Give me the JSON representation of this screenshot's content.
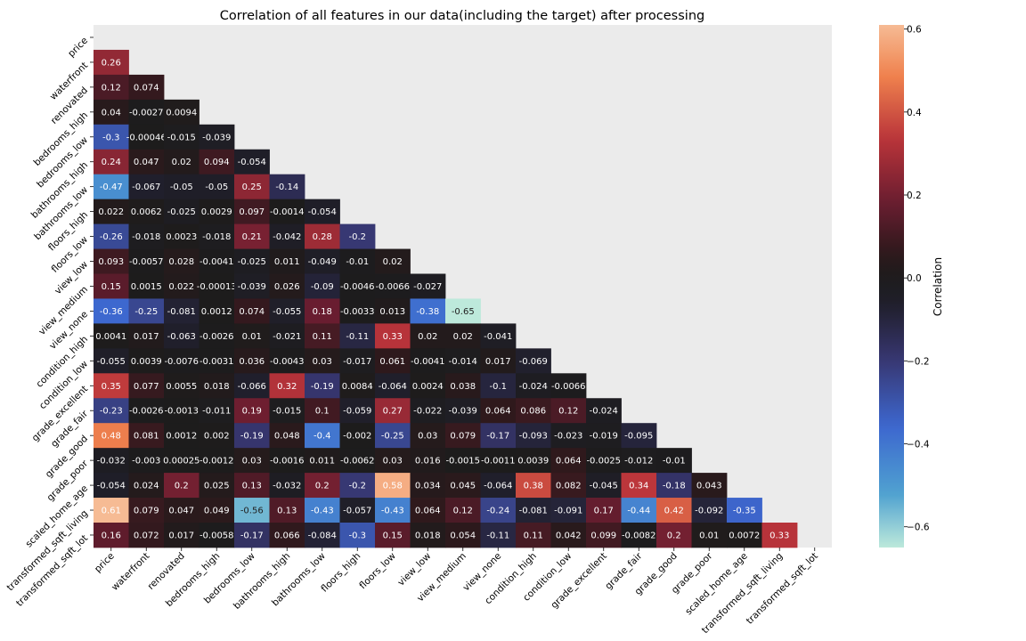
{
  "chart_data": {
    "type": "heatmap",
    "title": "Correlation of all features in our data(including the target) after processing",
    "features": [
      "price",
      "waterfront",
      "renovated",
      "bedrooms_high",
      "bedrooms_low",
      "bathrooms_high",
      "bathrooms_low",
      "floors_high",
      "floors_low",
      "view_low",
      "view_medium",
      "view_none",
      "condition_high",
      "condition_low",
      "grade_excellent",
      "grade_fair",
      "grade_good",
      "grade_poor",
      "scaled_home_age",
      "transformed_sqft_living",
      "transformed_sqft_lot"
    ],
    "mask": "upper-triangle-including-diagonal",
    "values": [
      [],
      [
        "0.26"
      ],
      [
        "0.12",
        "0.074"
      ],
      [
        "0.04",
        "-0.0027",
        "0.0094"
      ],
      [
        "-0.3",
        "-0.00046",
        "-0.015",
        "-0.039"
      ],
      [
        "0.24",
        "0.047",
        "0.02",
        "0.094",
        "-0.054"
      ],
      [
        "-0.47",
        "-0.067",
        "-0.05",
        "-0.05",
        "0.25",
        "-0.14"
      ],
      [
        "0.022",
        "0.0062",
        "-0.025",
        "0.0029",
        "0.097",
        "-0.0014",
        "-0.054"
      ],
      [
        "-0.26",
        "-0.018",
        "0.0023",
        "-0.018",
        "0.21",
        "-0.042",
        "0.28",
        "-0.2"
      ],
      [
        "0.093",
        "-0.0057",
        "0.028",
        "-0.0041",
        "-0.025",
        "0.011",
        "-0.049",
        "-0.01",
        "0.02"
      ],
      [
        "0.15",
        "0.0015",
        "0.022",
        "-0.00013",
        "-0.039",
        "0.026",
        "-0.09",
        "-0.0046",
        "-0.0066",
        "-0.027"
      ],
      [
        "-0.36",
        "-0.25",
        "-0.081",
        "0.0012",
        "0.074",
        "-0.055",
        "0.18",
        "-0.0033",
        "0.013",
        "-0.38",
        "-0.65"
      ],
      [
        "0.0041",
        "0.017",
        "-0.063",
        "-0.0026",
        "0.01",
        "-0.021",
        "0.11",
        "-0.11",
        "0.33",
        "0.02",
        "0.02",
        "-0.041"
      ],
      [
        "-0.055",
        "0.0039",
        "-0.0076",
        "-0.0031",
        "0.036",
        "-0.0043",
        "0.03",
        "-0.017",
        "0.061",
        "-0.0041",
        "-0.014",
        "0.017",
        "-0.069"
      ],
      [
        "0.35",
        "0.077",
        "0.0055",
        "0.018",
        "-0.066",
        "0.32",
        "-0.19",
        "0.0084",
        "-0.064",
        "0.0024",
        "0.038",
        "-0.1",
        "-0.024",
        "-0.0066"
      ],
      [
        "-0.23",
        "-0.0026",
        "-0.0013",
        "-0.011",
        "0.19",
        "-0.015",
        "0.1",
        "-0.059",
        "0.27",
        "-0.022",
        "-0.039",
        "0.064",
        "0.086",
        "0.12",
        "-0.024"
      ],
      [
        "0.48",
        "0.081",
        "0.0012",
        "0.002",
        "-0.19",
        "0.048",
        "-0.4",
        "-0.002",
        "-0.25",
        "0.03",
        "0.079",
        "-0.17",
        "-0.093",
        "-0.023",
        "-0.019",
        "-0.095"
      ],
      [
        "-0.032",
        "-0.003",
        "0.00025",
        "-0.0012",
        "0.03",
        "-0.0016",
        "0.011",
        "-0.0062",
        "0.03",
        "0.016",
        "-0.0015",
        "-0.0011",
        "0.0039",
        "0.064",
        "-0.0025",
        "-0.012",
        "-0.01"
      ],
      [
        "-0.054",
        "0.024",
        "0.2",
        "0.025",
        "0.13",
        "-0.032",
        "0.2",
        "-0.2",
        "0.58",
        "0.034",
        "0.045",
        "-0.064",
        "0.38",
        "0.082",
        "-0.045",
        "0.34",
        "-0.18",
        "0.043"
      ],
      [
        "0.61",
        "0.079",
        "0.047",
        "0.049",
        "-0.56",
        "0.13",
        "-0.43",
        "-0.057",
        "-0.43",
        "0.064",
        "0.12",
        "-0.24",
        "-0.081",
        "-0.091",
        "0.17",
        "-0.44",
        "0.42",
        "-0.092",
        "-0.35"
      ],
      [
        "0.16",
        "0.072",
        "0.017",
        "-0.0058",
        "-0.17",
        "0.066",
        "-0.084",
        "-0.3",
        "0.15",
        "0.018",
        "0.054",
        "-0.11",
        "0.11",
        "0.042",
        "0.099",
        "-0.0082",
        "0.2",
        "0.01",
        "0.0072",
        "0.33"
      ]
    ],
    "colormap": "icefire (centered at 0)",
    "vmin": -0.65,
    "vmax": 0.61,
    "colorbar": {
      "label": "Correlation",
      "ticks": [
        "0.6",
        "0.4",
        "0.2",
        "0.0",
        "−0.2",
        "−0.4",
        "−0.6"
      ]
    },
    "background_color": "#ebebeb"
  }
}
